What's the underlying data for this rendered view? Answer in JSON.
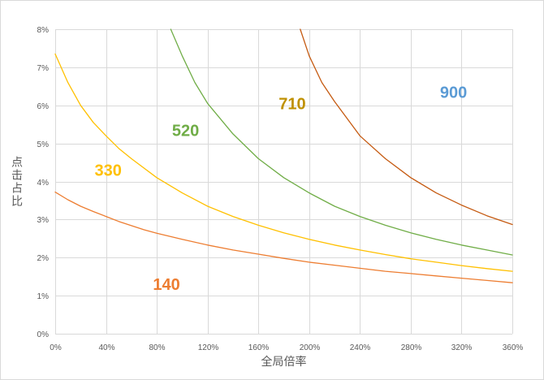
{
  "chart_data": {
    "type": "line",
    "xlabel": "全局倍率",
    "ylabel": "点击占比",
    "xlim": [
      0,
      360
    ],
    "ylim": [
      0,
      8
    ],
    "x_ticks": [
      0,
      40,
      80,
      120,
      160,
      200,
      240,
      280,
      320,
      360
    ],
    "x_tick_labels": [
      "0%",
      "40%",
      "80%",
      "120%",
      "160%",
      "200%",
      "240%",
      "280%",
      "320%",
      "360%"
    ],
    "y_ticks": [
      0,
      1,
      2,
      3,
      4,
      5,
      6,
      7,
      8
    ],
    "y_tick_labels": [
      "0%",
      "1%",
      "2%",
      "3%",
      "4%",
      "5%",
      "6%",
      "7%",
      "8%"
    ],
    "grid": true,
    "legend": "none",
    "series": [
      {
        "name": "140",
        "color": "#ed7d31",
        "label_at": {
          "x": 77,
          "y": 1.15
        },
        "x": [
          0,
          10,
          20,
          30,
          40,
          50,
          60,
          70,
          80,
          100,
          120,
          140,
          160,
          180,
          200,
          220,
          240,
          260,
          280,
          300,
          320,
          340,
          360
        ],
        "values": [
          3.72,
          3.52,
          3.35,
          3.21,
          3.08,
          2.95,
          2.84,
          2.73,
          2.64,
          2.48,
          2.33,
          2.2,
          2.09,
          1.98,
          1.88,
          1.8,
          1.72,
          1.64,
          1.58,
          1.52,
          1.46,
          1.4,
          1.34
        ]
      },
      {
        "name": "330",
        "color": "#ffc000",
        "label_at": {
          "x": 31,
          "y": 4.15
        },
        "x": [
          0,
          10,
          20,
          30,
          40,
          50,
          60,
          80,
          100,
          120,
          140,
          160,
          180,
          200,
          220,
          240,
          260,
          280,
          300,
          320,
          340,
          360
        ],
        "values": [
          7.35,
          6.6,
          6.0,
          5.55,
          5.2,
          4.87,
          4.6,
          4.1,
          3.7,
          3.35,
          3.08,
          2.85,
          2.65,
          2.48,
          2.33,
          2.2,
          2.08,
          1.97,
          1.88,
          1.79,
          1.71,
          1.64
        ]
      },
      {
        "name": "520",
        "color": "#70ad47",
        "label_at": {
          "x": 92,
          "y": 5.2
        },
        "x": [
          91,
          100,
          110,
          120,
          140,
          160,
          180,
          200,
          220,
          240,
          260,
          280,
          300,
          320,
          340,
          360
        ],
        "values": [
          8.0,
          7.3,
          6.6,
          6.05,
          5.25,
          4.6,
          4.1,
          3.7,
          3.35,
          3.08,
          2.85,
          2.65,
          2.48,
          2.33,
          2.2,
          2.07
        ]
      },
      {
        "name": "710",
        "color": "#bf9000",
        "label_at": {
          "x": 176,
          "y": 5.9
        },
        "x": [
          193,
          200,
          210,
          220,
          240,
          260,
          280,
          300,
          320,
          340,
          360
        ],
        "values": [
          8.0,
          7.3,
          6.6,
          6.1,
          5.2,
          4.6,
          4.1,
          3.7,
          3.38,
          3.1,
          2.87
        ],
        "line_color": "#c55a11"
      },
      {
        "name": "900",
        "color": "#5b9bd5",
        "label_at": {
          "x": 303,
          "y": 6.2
        },
        "x": [],
        "values": []
      }
    ]
  }
}
